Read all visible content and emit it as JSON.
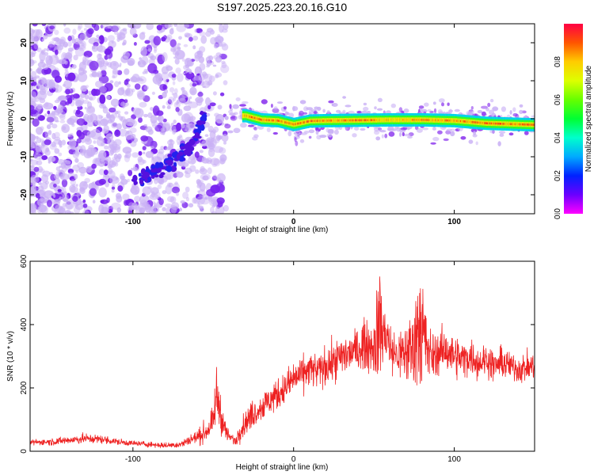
{
  "title": "S197.2025.223.20.16.G10",
  "colors": {
    "snr_line": "#ee2222",
    "scatter_dot": "#7722ee",
    "scatter_faint": "#c9b0f5"
  },
  "chart_data": [
    {
      "id": "spectrogram",
      "type": "heatmap",
      "title": "S197.2025.223.20.16.G10",
      "xlabel": "Height of straight line (km)",
      "ylabel": "Frequency (Hz)",
      "xlim": [
        -164,
        150
      ],
      "ylim": [
        -25,
        25
      ],
      "xticks": [
        -100,
        0,
        100
      ],
      "xtick_labels": [
        "-100",
        "0",
        "100"
      ],
      "yticks": [
        -20,
        -10,
        0,
        10,
        20
      ],
      "ytick_labels": [
        "-20",
        "-10",
        "0",
        "10",
        "20"
      ],
      "colorbar": {
        "label": "Normalized spectral amplitude",
        "range": [
          0,
          1
        ],
        "ticks": [
          0.0,
          0.2,
          0.4,
          0.6,
          0.8
        ],
        "tick_labels": [
          "0.0",
          "0.2",
          "0.4",
          "0.6",
          "0.8"
        ]
      },
      "ridge": {
        "description_points": [
          [
            -30,
            0.8
          ],
          [
            -20,
            -0.3
          ],
          [
            -10,
            -0.5
          ],
          [
            0,
            -1.5
          ],
          [
            10,
            -0.6
          ],
          [
            20,
            -0.5
          ],
          [
            40,
            -0.4
          ],
          [
            60,
            -0.3
          ],
          [
            80,
            -0.3
          ],
          [
            100,
            -0.5
          ],
          [
            120,
            -1.2
          ],
          [
            150,
            -1.6
          ]
        ],
        "amplitude": [
          [
            -30,
            0.9
          ],
          [
            -20,
            0.95
          ],
          [
            -10,
            0.92
          ],
          [
            0,
            0.9
          ],
          [
            10,
            0.95
          ],
          [
            20,
            0.9
          ],
          [
            40,
            0.95
          ],
          [
            60,
            0.85
          ],
          [
            80,
            0.9
          ],
          [
            100,
            0.9
          ],
          [
            120,
            0.95
          ],
          [
            150,
            0.92
          ]
        ]
      },
      "diagonal_feature": [
        [
          -100,
          -17
        ],
        [
          -85,
          -14
        ],
        [
          -72,
          -10
        ],
        [
          -62,
          -6
        ],
        [
          -56,
          0
        ],
        [
          -55,
          3
        ]
      ],
      "noise_region_xlim": [
        -164,
        -42
      ]
    },
    {
      "id": "snr",
      "type": "line",
      "xlabel": "Height of straight line (km)",
      "ylabel": "SNR (10 * v/v)",
      "xlim": [
        -164,
        150
      ],
      "ylim": [
        0,
        600
      ],
      "xticks": [
        -100,
        0,
        100
      ],
      "xtick_labels": [
        "-100",
        "0",
        "100"
      ],
      "yticks": [
        0,
        200,
        400,
        600
      ],
      "ytick_labels": [
        "0",
        "200",
        "400",
        "600"
      ],
      "series": [
        {
          "name": "SNR",
          "x": [
            -164,
            -150,
            -140,
            -130,
            -120,
            -110,
            -100,
            -90,
            -80,
            -70,
            -65,
            -60,
            -55,
            -50,
            -48,
            -46,
            -44,
            -42,
            -40,
            -38,
            -36,
            -34,
            -30,
            -25,
            -20,
            -15,
            -10,
            -5,
            0,
            5,
            10,
            15,
            20,
            25,
            30,
            35,
            40,
            45,
            50,
            52,
            54,
            56,
            58,
            60,
            65,
            70,
            75,
            78,
            80,
            82,
            85,
            90,
            95,
            100,
            105,
            110,
            115,
            120,
            125,
            130,
            135,
            140,
            145,
            150
          ],
          "y": [
            28,
            30,
            35,
            40,
            38,
            30,
            25,
            22,
            18,
            22,
            35,
            45,
            60,
            90,
            180,
            140,
            90,
            60,
            45,
            40,
            30,
            60,
            90,
            120,
            140,
            160,
            180,
            200,
            230,
            240,
            260,
            250,
            270,
            280,
            300,
            310,
            320,
            340,
            330,
            370,
            420,
            360,
            380,
            320,
            300,
            310,
            330,
            420,
            380,
            340,
            300,
            310,
            320,
            300,
            290,
            300,
            280,
            290,
            270,
            280,
            270,
            260,
            265,
            270
          ],
          "spread": [
            8,
            10,
            12,
            14,
            12,
            10,
            8,
            8,
            8,
            10,
            15,
            20,
            30,
            40,
            80,
            60,
            40,
            25,
            15,
            15,
            15,
            25,
            35,
            40,
            40,
            45,
            45,
            45,
            50,
            50,
            50,
            50,
            55,
            55,
            60,
            60,
            60,
            70,
            80,
            130,
            170,
            120,
            90,
            70,
            70,
            90,
            120,
            180,
            200,
            130,
            70,
            60,
            60,
            60,
            55,
            50,
            50,
            45,
            45,
            45,
            40,
            40,
            40,
            40
          ]
        }
      ]
    }
  ]
}
